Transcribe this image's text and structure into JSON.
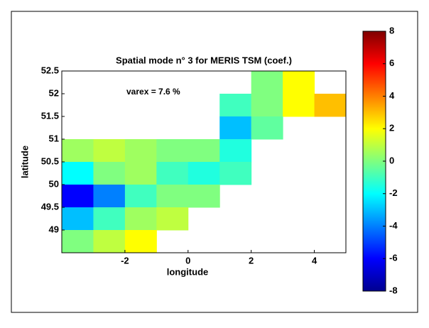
{
  "chart_data": {
    "type": "heatmap",
    "title": "Spatial mode n° 3 for MERIS TSM (coef.)",
    "annotation": "varex = 7.6 %",
    "xlabel": "longitude",
    "ylabel": "latitude",
    "x": [
      -3.5,
      -2.5,
      -1.5,
      -0.5,
      0.5,
      1.5,
      2.5,
      3.5,
      4.5
    ],
    "y": [
      52.25,
      51.75,
      51.25,
      50.75,
      50.25,
      49.75,
      49.25,
      48.75
    ],
    "values": [
      [
        null,
        null,
        null,
        null,
        null,
        null,
        0,
        2,
        null
      ],
      [
        null,
        null,
        null,
        null,
        null,
        -1,
        0,
        2,
        3
      ],
      [
        null,
        null,
        null,
        null,
        null,
        -3,
        -0.5,
        null,
        null
      ],
      [
        0.5,
        1,
        0.5,
        0,
        0,
        -1.5,
        null,
        null,
        null
      ],
      [
        -2,
        0,
        0.5,
        -1,
        -1.5,
        -1,
        null,
        null,
        null
      ],
      [
        -6,
        -4,
        -1,
        0,
        0,
        null,
        null,
        null,
        null
      ],
      [
        -3,
        -1,
        0.5,
        1,
        null,
        null,
        null,
        null,
        null
      ],
      [
        0,
        1,
        2,
        null,
        null,
        null,
        null,
        null,
        null
      ]
    ],
    "xlim": [
      -4,
      5
    ],
    "ylim": [
      48.5,
      52.5
    ],
    "xticks": [
      -2,
      0,
      2,
      4
    ],
    "yticks": [
      49,
      49.5,
      50,
      50.5,
      51,
      51.5,
      52,
      52.5
    ],
    "colormap": "jet",
    "clim": [
      -8,
      8
    ],
    "cticks": [
      -8,
      -6,
      -4,
      -2,
      0,
      2,
      4,
      6,
      8
    ]
  }
}
